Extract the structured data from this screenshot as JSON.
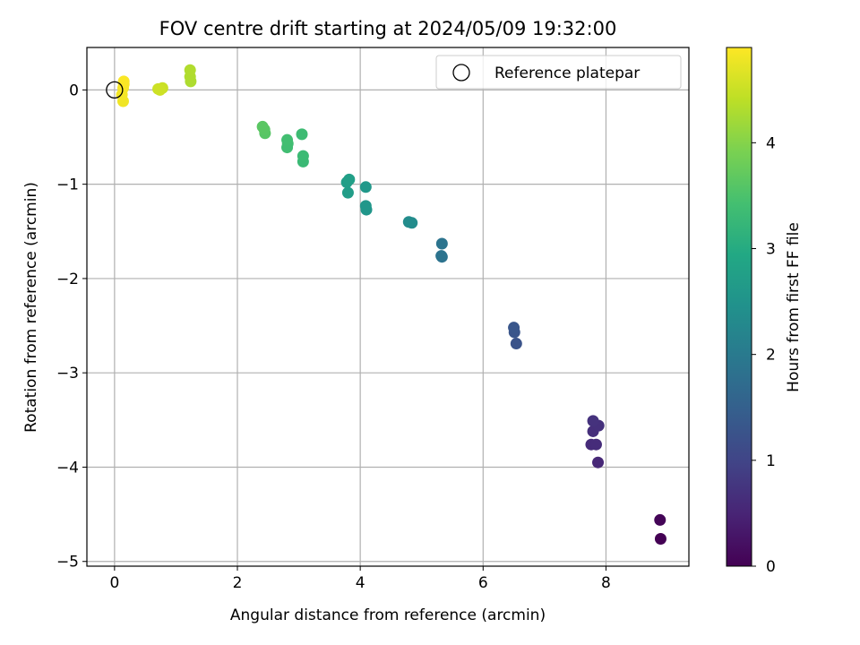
{
  "chart_data": {
    "type": "scatter",
    "title": "FOV centre drift starting at 2024/05/09 19:32:00",
    "xlabel": "Angular distance from reference (arcmin)",
    "ylabel": "Rotation from reference (arcmin)",
    "xlim": [
      -0.45,
      9.35
    ],
    "ylim": [
      -5.05,
      0.45
    ],
    "x_ticks": [
      0,
      2,
      4,
      6,
      8
    ],
    "x_tick_labels": [
      "0",
      "2",
      "4",
      "6",
      "8"
    ],
    "y_ticks": [
      0,
      -1,
      -2,
      -3,
      -4,
      -5
    ],
    "y_tick_labels": [
      "0",
      "−1",
      "−2",
      "−3",
      "−4",
      "−5"
    ],
    "grid": true,
    "legend": {
      "position": "top-right",
      "label": "Reference platepar"
    },
    "reference_point": {
      "x": 0,
      "y": 0
    },
    "colorbar": {
      "label": "Hours from first FF file",
      "colormap": "viridis",
      "range": [
        0,
        4.9
      ],
      "ticks": [
        0,
        1,
        2,
        3,
        4
      ],
      "tick_labels": [
        "0",
        "1",
        "2",
        "3",
        "4"
      ]
    },
    "points": [
      {
        "x": 8.89,
        "y": -4.76,
        "hours": 0.0
      },
      {
        "x": 8.88,
        "y": -4.56,
        "hours": 0.05
      },
      {
        "x": 7.87,
        "y": -3.95,
        "hours": 0.55
      },
      {
        "x": 7.76,
        "y": -3.76,
        "hours": 0.6
      },
      {
        "x": 7.84,
        "y": -3.76,
        "hours": 0.62
      },
      {
        "x": 7.79,
        "y": -3.62,
        "hours": 0.66
      },
      {
        "x": 7.88,
        "y": -3.56,
        "hours": 0.68
      },
      {
        "x": 7.79,
        "y": -3.51,
        "hours": 0.7
      },
      {
        "x": 6.54,
        "y": -2.69,
        "hours": 1.25
      },
      {
        "x": 6.51,
        "y": -2.57,
        "hours": 1.28
      },
      {
        "x": 6.5,
        "y": -2.52,
        "hours": 1.3
      },
      {
        "x": 5.33,
        "y": -1.77,
        "hours": 1.85
      },
      {
        "x": 5.32,
        "y": -1.76,
        "hours": 1.86
      },
      {
        "x": 5.33,
        "y": -1.63,
        "hours": 1.88
      },
      {
        "x": 4.84,
        "y": -1.41,
        "hours": 2.35
      },
      {
        "x": 4.79,
        "y": -1.4,
        "hours": 2.36
      },
      {
        "x": 4.1,
        "y": -1.27,
        "hours": 2.55
      },
      {
        "x": 4.09,
        "y": -1.23,
        "hours": 2.57
      },
      {
        "x": 4.09,
        "y": -1.03,
        "hours": 2.6
      },
      {
        "x": 3.8,
        "y": -1.09,
        "hours": 2.7
      },
      {
        "x": 3.78,
        "y": -0.98,
        "hours": 2.72
      },
      {
        "x": 3.82,
        "y": -0.95,
        "hours": 2.74
      },
      {
        "x": 3.07,
        "y": -0.76,
        "hours": 3.3
      },
      {
        "x": 3.07,
        "y": -0.7,
        "hours": 3.32
      },
      {
        "x": 3.05,
        "y": -0.47,
        "hours": 3.35
      },
      {
        "x": 2.81,
        "y": -0.61,
        "hours": 3.38
      },
      {
        "x": 2.82,
        "y": -0.57,
        "hours": 3.39
      },
      {
        "x": 2.81,
        "y": -0.53,
        "hours": 3.4
      },
      {
        "x": 2.45,
        "y": -0.46,
        "hours": 3.6
      },
      {
        "x": 2.44,
        "y": -0.42,
        "hours": 3.62
      },
      {
        "x": 2.41,
        "y": -0.39,
        "hours": 3.63
      },
      {
        "x": 1.24,
        "y": 0.09,
        "hours": 4.3
      },
      {
        "x": 1.23,
        "y": 0.14,
        "hours": 4.31
      },
      {
        "x": 1.23,
        "y": 0.21,
        "hours": 4.32
      },
      {
        "x": 0.78,
        "y": 0.02,
        "hours": 4.5
      },
      {
        "x": 0.71,
        "y": 0.01,
        "hours": 4.52
      },
      {
        "x": 0.74,
        "y": 0.0,
        "hours": 4.53
      },
      {
        "x": 0.14,
        "y": -0.12,
        "hours": 4.8
      },
      {
        "x": 0.12,
        "y": -0.05,
        "hours": 4.82
      },
      {
        "x": 0.14,
        "y": 0.02,
        "hours": 4.84
      },
      {
        "x": 0.15,
        "y": 0.06,
        "hours": 4.86
      },
      {
        "x": 0.15,
        "y": 0.09,
        "hours": 4.88
      }
    ]
  }
}
